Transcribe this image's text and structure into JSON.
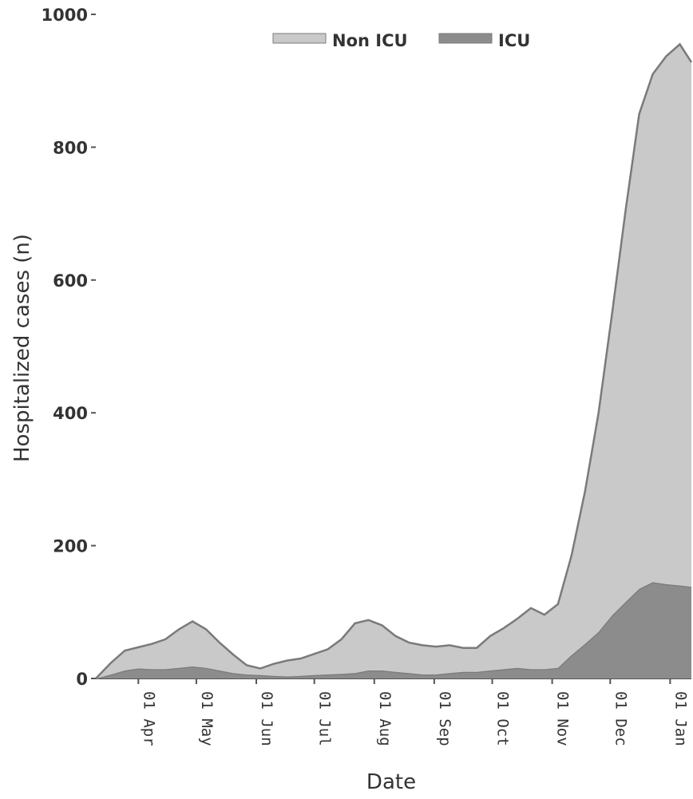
{
  "chart_data": {
    "type": "area",
    "stacked": true,
    "xlabel": "Date",
    "ylabel": "Hospitalized cases (n)",
    "ylim": [
      0,
      1000
    ],
    "yticks": [
      0,
      200,
      400,
      600,
      800,
      1000
    ],
    "xlim": [
      "2020-03-10",
      "2021-01-12"
    ],
    "xtick_labels": [
      "01 Apr",
      "01 May",
      "01 Jun",
      "01 Jul",
      "01 Aug",
      "01 Sep",
      "01 Oct",
      "01 Nov",
      "01 Dec",
      "01 Jan"
    ],
    "xtick_dates": [
      "2020-04-01",
      "2020-05-01",
      "2020-06-01",
      "2020-07-01",
      "2020-08-01",
      "2020-09-01",
      "2020-10-01",
      "2020-11-01",
      "2020-12-01",
      "2021-01-01"
    ],
    "legend_position": "top",
    "grid": false,
    "x": [
      "2020-03-10",
      "2020-03-18",
      "2020-03-25",
      "2020-04-01",
      "2020-04-08",
      "2020-04-15",
      "2020-04-22",
      "2020-04-29",
      "2020-05-06",
      "2020-05-13",
      "2020-05-20",
      "2020-05-27",
      "2020-06-03",
      "2020-06-10",
      "2020-06-17",
      "2020-06-24",
      "2020-07-01",
      "2020-07-08",
      "2020-07-15",
      "2020-07-22",
      "2020-07-29",
      "2020-08-05",
      "2020-08-12",
      "2020-08-19",
      "2020-08-26",
      "2020-09-02",
      "2020-09-09",
      "2020-09-16",
      "2020-09-23",
      "2020-09-30",
      "2020-10-07",
      "2020-10-14",
      "2020-10-21",
      "2020-10-28",
      "2020-11-04",
      "2020-11-11",
      "2020-11-18",
      "2020-11-25",
      "2020-12-02",
      "2020-12-09",
      "2020-12-16",
      "2020-12-23",
      "2020-12-30",
      "2021-01-06",
      "2021-01-12"
    ],
    "series": [
      {
        "name": "ICU",
        "color": "#8c8c8c",
        "values": [
          0,
          6,
          12,
          15,
          14,
          14,
          16,
          18,
          16,
          12,
          8,
          6,
          5,
          4,
          3,
          4,
          5,
          6,
          7,
          8,
          12,
          12,
          10,
          8,
          6,
          6,
          8,
          10,
          10,
          12,
          14,
          16,
          14,
          14,
          16,
          35,
          52,
          70,
          95,
          115,
          135,
          145,
          142,
          140,
          138
        ]
      },
      {
        "name": "Non ICU",
        "color": "#c9c9c9",
        "values": [
          0,
          18,
          30,
          32,
          38,
          45,
          58,
          68,
          58,
          42,
          28,
          14,
          10,
          18,
          24,
          26,
          32,
          38,
          52,
          75,
          76,
          68,
          54,
          46,
          44,
          42,
          42,
          36,
          36,
          52,
          62,
          74,
          92,
          82,
          96,
          150,
          230,
          330,
          455,
          590,
          715,
          765,
          795,
          815,
          790
        ]
      }
    ]
  }
}
